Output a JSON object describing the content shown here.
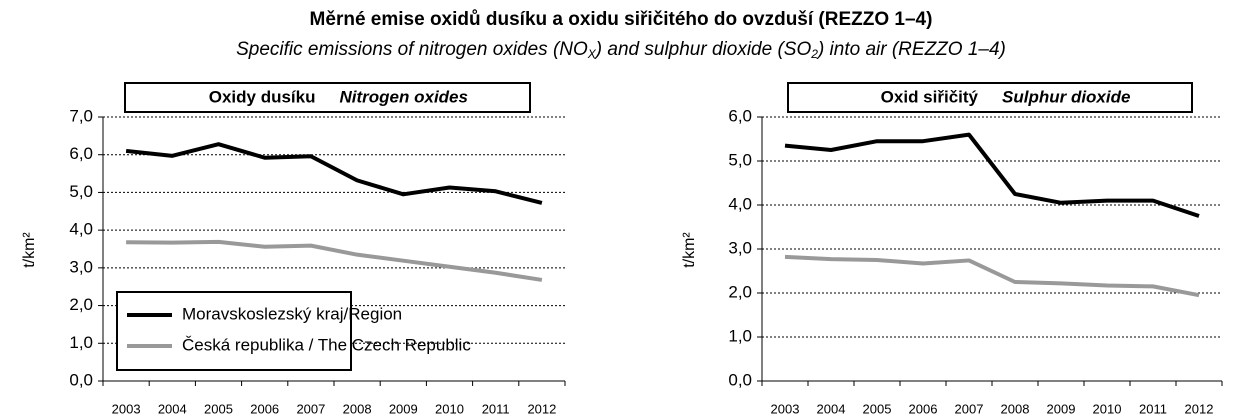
{
  "title": "Měrné emise oxidů dusíku a oxidu siřičitého do ovzduší (REZZO 1–4)",
  "subtitle": [
    "Specific emissions of nitrogen oxides (NO",
    "X",
    ") and sulphur dioxide (SO",
    "2",
    ") into air (REZZO 1–4)"
  ],
  "chart_data": [
    {
      "type": "line",
      "title": "Oxidy dusíku",
      "title_en": "Nitrogen oxides",
      "y_label": "t/km²",
      "categories": [
        "2003",
        "2004",
        "2005",
        "2006",
        "2007",
        "2008",
        "2009",
        "2010",
        "2011",
        "2012"
      ],
      "ylim": [
        0,
        7
      ],
      "yticks": [
        {
          "value": 0,
          "label": "0,0"
        },
        {
          "value": 1,
          "label": "1,0"
        },
        {
          "value": 2,
          "label": "2,0"
        },
        {
          "value": 3,
          "label": "3,0"
        },
        {
          "value": 4,
          "label": "4,0"
        },
        {
          "value": 5,
          "label": "5,0"
        },
        {
          "value": 6,
          "label": "6,0"
        },
        {
          "value": 7,
          "label": "7,0"
        }
      ],
      "grid": true,
      "legend": "lower left",
      "series": [
        {
          "name": "Moravskoslezský kraj/Region",
          "color": "#000000",
          "values": [
            6.1,
            5.97,
            6.28,
            5.92,
            5.96,
            5.32,
            4.95,
            5.13,
            5.03,
            4.72
          ]
        },
        {
          "name": "Česká republika / The Czech Republic",
          "color": "#999999",
          "values": [
            3.68,
            3.67,
            3.69,
            3.56,
            3.59,
            3.35,
            3.19,
            3.03,
            2.87,
            2.68
          ]
        }
      ]
    },
    {
      "type": "line",
      "title": "Oxid siřičitý",
      "title_en": "Sulphur dioxide",
      "y_label": "t/km²",
      "categories": [
        "2003",
        "2004",
        "2005",
        "2006",
        "2007",
        "2008",
        "2009",
        "2010",
        "2011",
        "2012"
      ],
      "ylim": [
        0,
        6
      ],
      "yticks": [
        {
          "value": 0,
          "label": "0,0"
        },
        {
          "value": 1,
          "label": "1,0"
        },
        {
          "value": 2,
          "label": "2,0"
        },
        {
          "value": 3,
          "label": "3,0"
        },
        {
          "value": 4,
          "label": "4,0"
        },
        {
          "value": 5,
          "label": "5,0"
        },
        {
          "value": 6,
          "label": "6,0"
        }
      ],
      "grid": true,
      "series": [
        {
          "color": "#000000",
          "values": [
            5.35,
            5.25,
            5.45,
            5.45,
            5.6,
            4.25,
            4.05,
            4.1,
            4.1,
            3.75
          ]
        },
        {
          "color": "#999999",
          "values": [
            2.82,
            2.77,
            2.75,
            2.67,
            2.74,
            2.25,
            2.22,
            2.17,
            2.15,
            1.95
          ]
        }
      ]
    }
  ]
}
